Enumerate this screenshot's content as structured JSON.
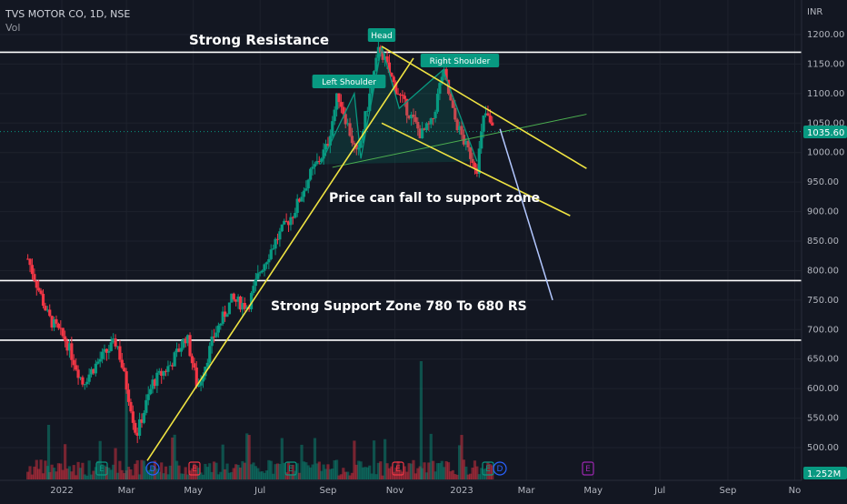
{
  "header": {
    "symbol": "TVS MOTOR CO, 1D, NSE",
    "volume_label": "Vol"
  },
  "price_axis": {
    "currency": "INR",
    "ticks": [
      "1200.00",
      "1150.00",
      "1100.00",
      "1050.00",
      "1000.00",
      "950.00",
      "900.00",
      "850.00",
      "800.00",
      "750.00",
      "700.00",
      "650.00",
      "600.00",
      "550.00",
      "500.00"
    ],
    "last_price": "1035.60",
    "last_volume": "1.252M"
  },
  "time_axis": {
    "ticks": [
      "2022",
      "Mar",
      "May",
      "Jul",
      "Sep",
      "Nov",
      "2023",
      "Mar",
      "May",
      "Jul",
      "Sep",
      "No"
    ]
  },
  "annotations": {
    "strong_resistance": "Strong Resistance",
    "head": "Head",
    "left_shoulder": "Left Shoulder",
    "right_shoulder": "Right Shoulder",
    "price_fall": "Price can fall to support zone",
    "support_zone": "Strong Support Zone 780 To 680 RS"
  },
  "event_markers": [
    {
      "label": "E",
      "color": "#089981"
    },
    {
      "label": "D",
      "color": "#2962ff"
    },
    {
      "label": "E",
      "color": "#f23645"
    },
    {
      "label": "E",
      "color": "#089981"
    },
    {
      "label": "E",
      "color": "#f23645"
    },
    {
      "label": "E",
      "color": "#089981"
    },
    {
      "label": "D",
      "color": "#2962ff"
    },
    {
      "label": "E",
      "color": "#9c27b0"
    }
  ],
  "chart_data": {
    "type": "candlestick",
    "y_range": [
      480,
      1220
    ],
    "resistance_level": 1170,
    "support_levels": [
      783,
      682
    ],
    "current_price": 1035.6,
    "price_path": [
      {
        "date": "2021-12-01",
        "price": 820
      },
      {
        "date": "2021-12-20",
        "price": 720
      },
      {
        "date": "2022-01-05",
        "price": 680
      },
      {
        "date": "2022-01-20",
        "price": 610
      },
      {
        "date": "2022-02-05",
        "price": 650
      },
      {
        "date": "2022-02-20",
        "price": 680
      },
      {
        "date": "2022-03-05",
        "price": 570
      },
      {
        "date": "2022-03-10",
        "price": 520
      },
      {
        "date": "2022-03-25",
        "price": 610
      },
      {
        "date": "2022-04-10",
        "price": 640
      },
      {
        "date": "2022-04-25",
        "price": 690
      },
      {
        "date": "2022-05-05",
        "price": 600
      },
      {
        "date": "2022-05-20",
        "price": 690
      },
      {
        "date": "2022-06-05",
        "price": 750
      },
      {
        "date": "2022-06-20",
        "price": 740
      },
      {
        "date": "2022-07-01",
        "price": 800
      },
      {
        "date": "2022-07-15",
        "price": 850
      },
      {
        "date": "2022-08-01",
        "price": 900
      },
      {
        "date": "2022-08-15",
        "price": 960
      },
      {
        "date": "2022-08-31",
        "price": 1010
      },
      {
        "date": "2022-09-10",
        "price": 1100
      },
      {
        "date": "2022-09-20",
        "price": 1040
      },
      {
        "date": "2022-09-28",
        "price": 990
      },
      {
        "date": "2022-10-05",
        "price": 1060
      },
      {
        "date": "2022-10-18",
        "price": 1180
      },
      {
        "date": "2022-10-30",
        "price": 1120
      },
      {
        "date": "2022-11-10",
        "price": 1080
      },
      {
        "date": "2022-11-25",
        "price": 1030
      },
      {
        "date": "2022-12-05",
        "price": 1050
      },
      {
        "date": "2022-12-15",
        "price": 1140
      },
      {
        "date": "2022-12-25",
        "price": 1060
      },
      {
        "date": "2023-01-05",
        "price": 1010
      },
      {
        "date": "2023-01-15",
        "price": 975
      },
      {
        "date": "2023-01-22",
        "price": 1070
      },
      {
        "date": "2023-01-30",
        "price": 1035
      }
    ],
    "projected_path": [
      {
        "date": "2023-02-05",
        "price": 1040
      },
      {
        "date": "2023-03-25",
        "price": 750
      }
    ],
    "neckline": [
      {
        "date": "2022-09-05",
        "price": 975
      },
      {
        "date": "2023-04-25",
        "price": 1065
      }
    ],
    "upper_channel": [
      {
        "date": "2022-10-20",
        "price": 1180
      },
      {
        "date": "2023-04-25",
        "price": 973
      }
    ],
    "lower_channel": [
      {
        "date": "2022-10-20",
        "price": 1050
      },
      {
        "date": "2023-04-10",
        "price": 893
      }
    ],
    "uptrend_line": [
      {
        "date": "2022-03-20",
        "price": 478
      },
      {
        "date": "2022-11-18",
        "price": 1160
      }
    ]
  }
}
